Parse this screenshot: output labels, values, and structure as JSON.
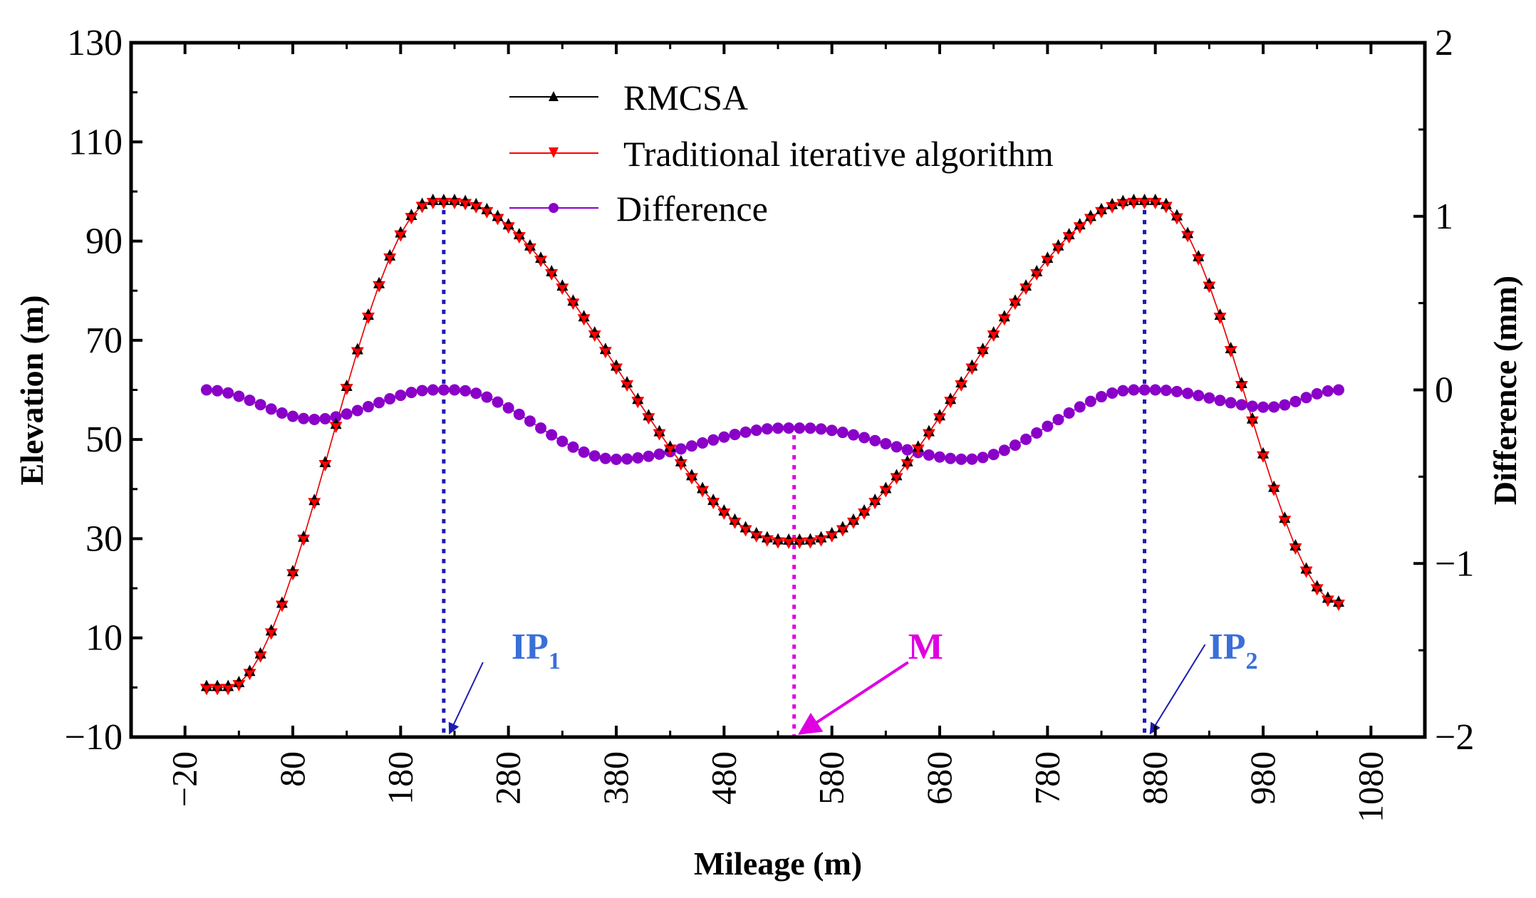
{
  "chart_data": {
    "type": "line",
    "xlabel": "Mileage (m)",
    "ylabel": "Elevation (m)",
    "y2label": "Difference (mm)",
    "xlim": [
      -70,
      1130
    ],
    "ylim": [
      -10,
      130
    ],
    "y2lim": [
      -2,
      2
    ],
    "x_ticks": [
      "-20",
      "80",
      "180",
      "280",
      "380",
      "480",
      "580",
      "680",
      "780",
      "880",
      "980",
      "1080"
    ],
    "y_ticks": [
      "-10",
      "10",
      "30",
      "50",
      "70",
      "90",
      "110",
      "130"
    ],
    "y2_ticks": [
      "-2",
      "-1",
      "0",
      "1",
      "2"
    ],
    "legend_position": "top-center",
    "grid": false,
    "series": [
      {
        "name": "RMCSA",
        "axis": "left",
        "color": "#000000",
        "marker": "triangle-up"
      },
      {
        "name": "Traditional iterative algorithm",
        "axis": "left",
        "color": "#ff0000",
        "marker": "triangle-down"
      },
      {
        "name": "Difference",
        "axis": "right",
        "color": "#8a00c8",
        "marker": "circle"
      }
    ],
    "elevation_profile": [
      [
        0,
        0
      ],
      [
        20,
        0
      ],
      [
        210,
        98
      ],
      [
        230,
        98
      ],
      [
        535,
        29.5
      ],
      [
        555,
        29.5
      ],
      [
        860,
        98
      ],
      [
        880,
        98
      ],
      [
        1050,
        17
      ]
    ],
    "elevation_sampling": {
      "start": 0,
      "end": 1050,
      "step": 10
    },
    "difference_profile": [
      [
        0,
        0
      ],
      [
        100,
        -0.17
      ],
      [
        210,
        0
      ],
      [
        230,
        0
      ],
      [
        380,
        -0.4
      ],
      [
        535,
        -0.22
      ],
      [
        555,
        -0.22
      ],
      [
        705,
        -0.4
      ],
      [
        860,
        0
      ],
      [
        880,
        0
      ],
      [
        985,
        -0.1
      ],
      [
        1050,
        0
      ]
    ],
    "difference_sampling": {
      "start": 0,
      "end": 1050,
      "step": 10
    },
    "annotations": [
      {
        "id": "ip1",
        "label": "IP",
        "sub": "1",
        "x": 220,
        "color": "#3a6fd8",
        "line_color": "#1c1cb4"
      },
      {
        "id": "m",
        "label": "M",
        "sub": "",
        "x": 545,
        "color": "#e000e0",
        "line_color": "#e000e0"
      },
      {
        "id": "ip2",
        "label": "IP",
        "sub": "2",
        "x": 870,
        "color": "#3a6fd8",
        "line_color": "#1c1cb4"
      }
    ]
  }
}
